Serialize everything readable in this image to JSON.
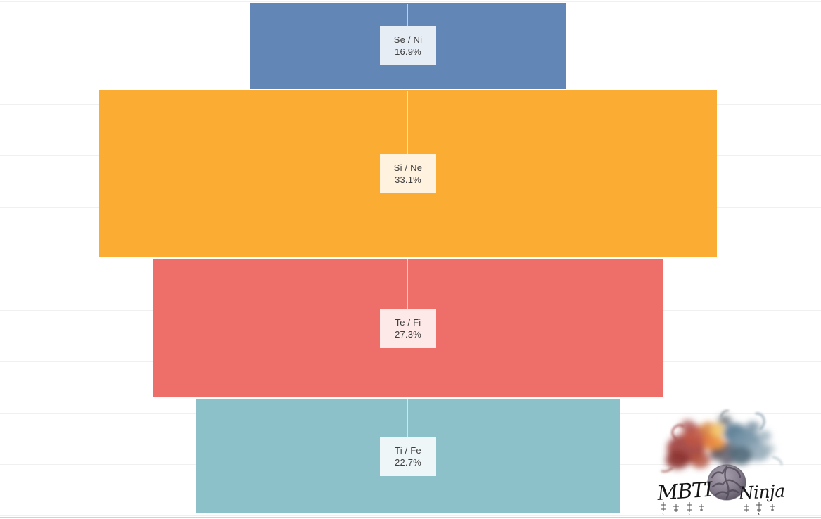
{
  "chart_data": {
    "type": "funnel",
    "title": "",
    "orientation": "vertical-centered",
    "categories": [
      "Se / Ni",
      "Si / Ne",
      "Te / Fi",
      "Ti / Fe"
    ],
    "values": [
      16.9,
      33.1,
      27.3,
      22.7
    ],
    "value_labels": [
      "16.9%",
      "33.1%",
      "27.3%",
      "22.7%"
    ],
    "segments": [
      {
        "label": "Se / Ni",
        "value": 16.9,
        "value_label": "16.9%",
        "color": "#6287B6"
      },
      {
        "label": "Si / Ne",
        "value": 33.1,
        "value_label": "33.1%",
        "color": "#FBAC33"
      },
      {
        "label": "Te / Fi",
        "value": 27.3,
        "value_label": "27.3%",
        "color": "#EE6E69"
      },
      {
        "label": "Ti / Fe",
        "value": 22.7,
        "value_label": "22.7%",
        "color": "#8DC1C9"
      }
    ],
    "legend": "none",
    "grid": "horizontal light gridlines, no axis tick labels"
  },
  "watermark": {
    "brand_left": "MBTI",
    "brand_right": "Ninja"
  },
  "colors": {
    "background": "#ffffff",
    "grid_line": "#f0f0f0",
    "axis_line": "#d2d2d2",
    "label_background": "rgba(255,255,255,0.85)",
    "label_text": "#3f3f3f"
  }
}
